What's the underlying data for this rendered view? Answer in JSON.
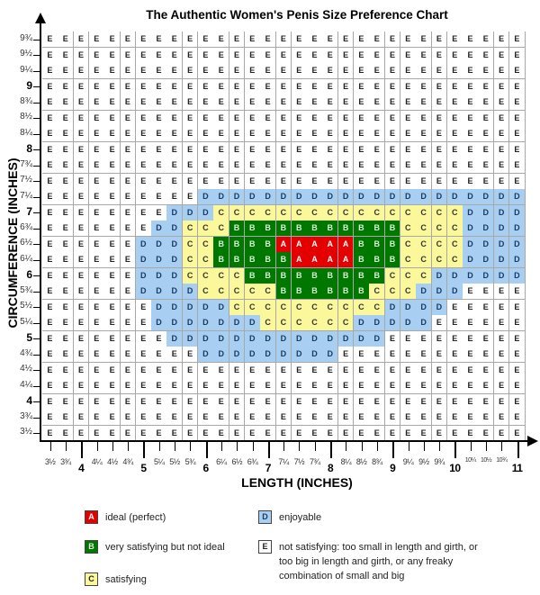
{
  "chart_data": {
    "type": "heatmap",
    "title": "The Authentic Women's Penis Size Preference Chart",
    "xlabel": "LENGTH  (INCHES)",
    "ylabel": "CIRCUMFERENCE (INCHES)",
    "x": [
      "3½",
      "3¾",
      "4",
      "4¼",
      "4½",
      "4¾",
      "5",
      "5¼",
      "5½",
      "5¾",
      "6",
      "6¼",
      "6½",
      "6¾",
      "7",
      "7¼",
      "7½",
      "7¾",
      "8",
      "8¼",
      "8½",
      "8¾",
      "9",
      "9¼",
      "9½",
      "9¾",
      "10",
      "10¼",
      "10½",
      "10¾",
      "11"
    ],
    "x_values": [
      3.5,
      3.75,
      4,
      4.25,
      4.5,
      4.75,
      5,
      5.25,
      5.5,
      5.75,
      6,
      6.25,
      6.5,
      6.75,
      7,
      7.25,
      7.5,
      7.75,
      8,
      8.25,
      8.5,
      8.75,
      9,
      9.25,
      9.5,
      9.75,
      10,
      10.25,
      10.5,
      10.75,
      11
    ],
    "y": [
      "9¾",
      "9½",
      "9¼",
      "9",
      "8¾",
      "8½",
      "8¼",
      "8",
      "7¾",
      "7½",
      "7¼",
      "7",
      "6¾",
      "6½",
      "6¼",
      "6",
      "5¾",
      "5½",
      "5¼",
      "5",
      "4¾",
      "4½",
      "4¼",
      "4",
      "3¾",
      "3½"
    ],
    "y_values": [
      9.75,
      9.5,
      9.25,
      9,
      8.75,
      8.5,
      8.25,
      8,
      7.75,
      7.5,
      7.25,
      7,
      6.75,
      6.5,
      6.25,
      6,
      5.75,
      5.5,
      5.25,
      5,
      4.75,
      4.5,
      4.25,
      4,
      3.75,
      3.5
    ],
    "rows_rle": [
      "31E",
      "31E",
      "31E",
      "31E",
      "31E",
      "31E",
      "31E",
      "31E",
      "31E",
      "31E",
      "10E,21D",
      "8E,3D,16C,4D",
      "7E,2D,3C,11B,4C,4D",
      "6E,3D,2C,4B,5A,3B,4C,4D",
      "6E,3D,2C,5B,4A,3B,4C,4D",
      "6E,3D,4C,9B,3C,6D",
      "6E,4D,5C,6B,3C,3D,4E",
      "7E,5D,10C,4D,5E",
      "7E,7D,6C,5D,6E",
      "8E,14D,9E",
      "10E,9D,12E",
      "31E",
      "31E",
      "31E",
      "31E",
      "31E"
    ],
    "categories": {
      "A": {
        "label": "ideal (perfect)",
        "color": "#e40000",
        "text": "#ffffff"
      },
      "B": {
        "label": "very satisfying but not ideal",
        "color": "#007800",
        "text": "#d8f0d8"
      },
      "C": {
        "label": "satisfying",
        "color": "#fbf79b",
        "text": "#333333"
      },
      "D": {
        "label": "enjoyable",
        "color": "#a8cff2",
        "text": "#1a3a66"
      },
      "E": {
        "label": "not satisfying: too small in length and girth, or too big in length and girth, or any freaky combination of small and big",
        "color": "#ffffff",
        "text": "#222222"
      }
    },
    "legend_position": "bottom"
  }
}
